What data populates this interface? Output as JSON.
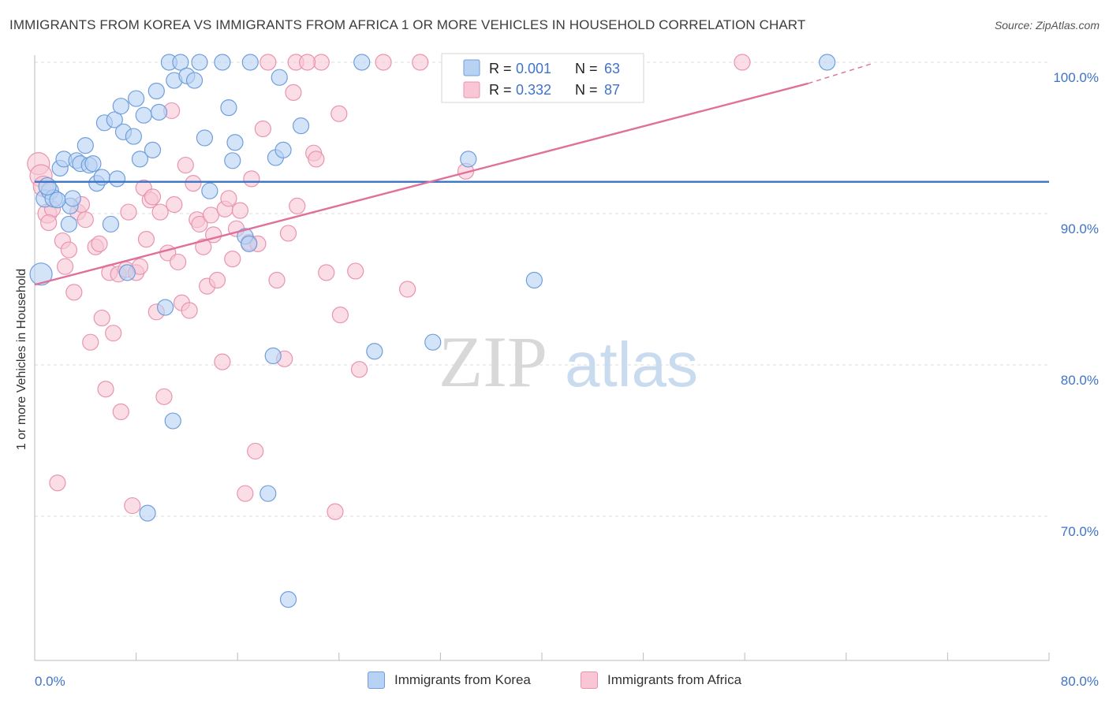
{
  "title": "IMMIGRANTS FROM KOREA VS IMMIGRANTS FROM AFRICA 1 OR MORE VEHICLES IN HOUSEHOLD CORRELATION CHART",
  "source": "Source: ZipAtlas.com",
  "watermark": {
    "zip": "ZIP",
    "atlas": "atlas"
  },
  "colors": {
    "korea_fill": "#b8d2f3",
    "korea_stroke": "#6f9edb",
    "korea_line": "#3a73c4",
    "africa_fill": "#f8c6d5",
    "africa_stroke": "#e894b0",
    "africa_line": "#e0709a",
    "tick_text": "#3f74c8",
    "grid": "#dcdcdc"
  },
  "legend": {
    "r_label": "R =",
    "n_label": "N =",
    "entries": [
      {
        "r": "0.001",
        "n": "63"
      },
      {
        "r": "0.332",
        "n": "87"
      }
    ]
  },
  "chart_data": {
    "type": "scatter",
    "title": "IMMIGRANTS FROM KOREA VS IMMIGRANTS FROM AFRICA 1 OR MORE VEHICLES IN HOUSEHOLD CORRELATION CHART",
    "xlabel": "",
    "ylabel": "1 or more Vehicles in Household",
    "xlim": [
      0,
      80
    ],
    "ylim": [
      62.5,
      101
    ],
    "x_ticks": [
      "0.0%",
      "80.0%"
    ],
    "y_ticks": [
      {
        "value": 100,
        "label": "100.0%"
      },
      {
        "value": 90,
        "label": "90.0%"
      },
      {
        "value": 80,
        "label": "80.0%"
      },
      {
        "value": 70,
        "label": "70.0%"
      }
    ],
    "grid": true,
    "legend_position": "top-center",
    "series": [
      {
        "name": "Immigrants from Korea",
        "r": 0.001,
        "n": 63,
        "trend": [
          [
            0,
            92.1
          ],
          [
            80,
            92.1
          ]
        ],
        "points": [
          [
            0.5,
            86.0,
            14
          ],
          [
            0.8,
            91.0,
            11
          ],
          [
            1.2,
            91.5,
            11
          ],
          [
            1.5,
            91.0,
            11
          ],
          [
            2.0,
            93.0,
            10
          ],
          [
            2.3,
            93.6,
            10
          ],
          [
            2.8,
            90.5,
            10
          ],
          [
            3.3,
            93.5,
            10
          ],
          [
            3.6,
            93.3,
            10
          ],
          [
            4.0,
            94.5,
            10
          ],
          [
            4.3,
            93.2,
            10
          ],
          [
            4.6,
            93.3,
            10
          ],
          [
            4.9,
            92.0,
            10
          ],
          [
            5.3,
            92.4,
            10
          ],
          [
            5.5,
            96.0,
            10
          ],
          [
            6.0,
            89.3,
            10
          ],
          [
            6.3,
            96.2,
            10
          ],
          [
            6.5,
            92.3,
            10
          ],
          [
            6.8,
            97.1,
            10
          ],
          [
            7.0,
            95.4,
            10
          ],
          [
            7.3,
            86.1,
            10
          ],
          [
            7.8,
            95.1,
            10
          ],
          [
            8.0,
            97.6,
            10
          ],
          [
            8.3,
            93.6,
            10
          ],
          [
            8.6,
            96.5,
            10
          ],
          [
            8.9,
            70.2,
            10
          ],
          [
            9.3,
            94.2,
            10
          ],
          [
            9.6,
            98.1,
            10
          ],
          [
            9.8,
            96.7,
            10
          ],
          [
            10.3,
            83.8,
            10
          ],
          [
            10.6,
            100.0,
            10
          ],
          [
            10.9,
            76.3,
            10
          ],
          [
            11.0,
            98.8,
            10
          ],
          [
            11.5,
            100.0,
            10
          ],
          [
            12.0,
            99.1,
            10
          ],
          [
            12.6,
            98.8,
            10
          ],
          [
            13.0,
            100.0,
            10
          ],
          [
            13.4,
            95.0,
            10
          ],
          [
            13.8,
            91.5,
            10
          ],
          [
            14.8,
            100.0,
            10
          ],
          [
            15.3,
            97.0,
            10
          ],
          [
            15.6,
            93.5,
            10
          ],
          [
            15.8,
            94.7,
            10
          ],
          [
            16.6,
            88.5,
            10
          ],
          [
            16.9,
            88.0,
            10
          ],
          [
            17.0,
            100.0,
            10
          ],
          [
            18.4,
            71.5,
            10
          ],
          [
            18.8,
            80.6,
            10
          ],
          [
            19.0,
            93.7,
            10
          ],
          [
            19.3,
            99.0,
            10
          ],
          [
            19.6,
            94.2,
            10
          ],
          [
            20.0,
            64.5,
            10
          ],
          [
            21.0,
            95.8,
            10
          ],
          [
            25.8,
            100.0,
            10
          ],
          [
            26.8,
            80.9,
            10
          ],
          [
            31.4,
            81.5,
            10
          ],
          [
            34.2,
            93.6,
            10
          ],
          [
            39.4,
            85.6,
            10
          ],
          [
            62.5,
            100.0,
            10
          ],
          [
            1.0,
            91.8,
            11
          ],
          [
            1.8,
            90.9,
            10
          ],
          [
            2.7,
            89.3,
            10
          ],
          [
            3.0,
            91.0,
            10
          ]
        ]
      },
      {
        "name": "Immigrants from Africa",
        "r": 0.332,
        "n": 87,
        "trend": [
          [
            0,
            85.3
          ],
          [
            61,
            98.6
          ]
        ],
        "trend_dashed": [
          [
            61,
            98.6
          ],
          [
            66,
            99.9
          ]
        ],
        "points": [
          [
            0.3,
            93.3,
            14
          ],
          [
            0.5,
            92.5,
            14
          ],
          [
            0.7,
            91.8,
            13
          ],
          [
            1.0,
            90.0,
            12
          ],
          [
            1.4,
            90.3,
            10
          ],
          [
            1.8,
            72.2,
            10
          ],
          [
            2.2,
            88.2,
            10
          ],
          [
            2.4,
            86.5,
            10
          ],
          [
            2.7,
            87.6,
            10
          ],
          [
            3.1,
            84.8,
            10
          ],
          [
            3.4,
            90.1,
            10
          ],
          [
            3.7,
            90.6,
            10
          ],
          [
            4.0,
            89.6,
            10
          ],
          [
            4.4,
            81.5,
            10
          ],
          [
            4.8,
            87.8,
            10
          ],
          [
            5.1,
            88.0,
            10
          ],
          [
            5.3,
            83.1,
            10
          ],
          [
            5.6,
            78.4,
            10
          ],
          [
            5.9,
            86.1,
            10
          ],
          [
            6.2,
            82.1,
            10
          ],
          [
            6.6,
            86.0,
            10
          ],
          [
            6.8,
            76.9,
            10
          ],
          [
            7.2,
            86.3,
            10
          ],
          [
            7.4,
            90.1,
            10
          ],
          [
            7.7,
            70.7,
            10
          ],
          [
            8.0,
            86.1,
            10
          ],
          [
            8.3,
            86.5,
            10
          ],
          [
            8.6,
            91.7,
            10
          ],
          [
            8.8,
            88.3,
            10
          ],
          [
            9.1,
            90.9,
            10
          ],
          [
            9.3,
            91.1,
            10
          ],
          [
            9.6,
            83.5,
            10
          ],
          [
            9.9,
            90.1,
            10
          ],
          [
            10.2,
            77.9,
            10
          ],
          [
            10.5,
            87.4,
            10
          ],
          [
            10.8,
            96.8,
            10
          ],
          [
            11.0,
            90.6,
            10
          ],
          [
            11.3,
            86.8,
            10
          ],
          [
            11.6,
            84.1,
            10
          ],
          [
            11.9,
            93.2,
            10
          ],
          [
            12.2,
            83.6,
            10
          ],
          [
            12.5,
            92.0,
            10
          ],
          [
            12.8,
            89.6,
            10
          ],
          [
            13.0,
            89.3,
            10
          ],
          [
            13.3,
            87.8,
            10
          ],
          [
            13.6,
            85.2,
            10
          ],
          [
            13.9,
            89.9,
            10
          ],
          [
            14.1,
            88.6,
            10
          ],
          [
            14.4,
            85.6,
            10
          ],
          [
            14.8,
            80.2,
            10
          ],
          [
            15.0,
            90.3,
            10
          ],
          [
            15.3,
            91.0,
            10
          ],
          [
            15.6,
            87.0,
            10
          ],
          [
            15.9,
            89.0,
            10
          ],
          [
            16.2,
            90.2,
            10
          ],
          [
            16.6,
            71.5,
            10
          ],
          [
            16.9,
            88.1,
            10
          ],
          [
            17.1,
            92.3,
            10
          ],
          [
            17.4,
            74.3,
            10
          ],
          [
            17.6,
            88.0,
            10
          ],
          [
            18.0,
            95.6,
            10
          ],
          [
            18.4,
            100.0,
            10
          ],
          [
            19.1,
            85.6,
            10
          ],
          [
            19.7,
            80.4,
            10
          ],
          [
            20.0,
            88.7,
            10
          ],
          [
            20.4,
            98.0,
            10
          ],
          [
            20.7,
            90.5,
            10
          ],
          [
            22.0,
            94.0,
            10
          ],
          [
            22.2,
            93.6,
            10
          ],
          [
            22.6,
            100.0,
            10
          ],
          [
            23.0,
            86.1,
            10
          ],
          [
            23.7,
            70.3,
            10
          ],
          [
            24.0,
            96.6,
            10
          ],
          [
            24.1,
            83.3,
            10
          ],
          [
            25.3,
            86.2,
            10
          ],
          [
            25.6,
            79.7,
            10
          ],
          [
            27.5,
            100.0,
            10
          ],
          [
            29.4,
            85.0,
            10
          ],
          [
            30.4,
            100.0,
            10
          ],
          [
            33.5,
            100.0,
            10
          ],
          [
            34.0,
            92.8,
            10
          ],
          [
            38.5,
            100.0,
            10
          ],
          [
            43.4,
            100.0,
            10
          ],
          [
            55.8,
            100.0,
            10
          ],
          [
            20.6,
            100.0,
            10
          ],
          [
            21.5,
            100.0,
            10
          ],
          [
            1.1,
            89.4,
            10
          ]
        ]
      }
    ]
  },
  "bottom_legend": [
    {
      "label": "Immigrants from Korea"
    },
    {
      "label": "Immigrants from Africa"
    }
  ]
}
